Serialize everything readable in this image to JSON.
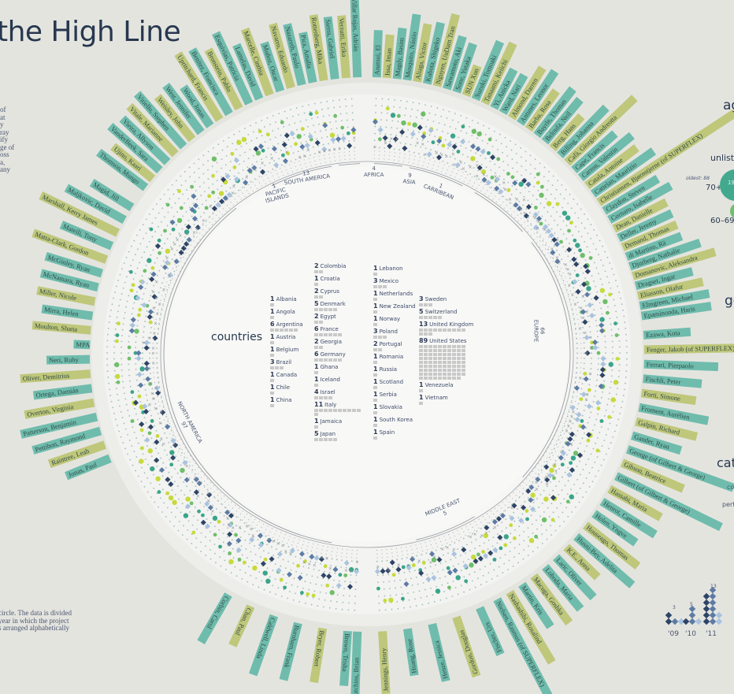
{
  "title": "the High Line",
  "intro_text_fragment": [
    "of",
    "at",
    "y",
    "ray",
    "ify",
    "ge of",
    "oss",
    "a,",
    "any"
  ],
  "footnote_text": [
    "circle. The data is divided",
    "year in which the project",
    "s arranged alphabetically"
  ],
  "center_label": "countries",
  "colors": {
    "background": "#e4e4df",
    "teal_label": "#6fbcad",
    "olive_label": "#bfc77a",
    "navy": "#27384f",
    "age_green": "#43a98e",
    "diamond_dark": "#2e4466",
    "diamond_mid": "#5c7ba5",
    "diamond_light": "#a9c3df",
    "dot_lime": "#c6da3c",
    "dot_green": "#6fbf6a",
    "dot_teal": "#3aa58a"
  },
  "regions": [
    {
      "name": "PACIFIC ISLANDS",
      "count": "1"
    },
    {
      "name": "SOUTH AMERICA",
      "count": "13"
    },
    {
      "name": "AFRICA",
      "count": "4"
    },
    {
      "name": "ASIA",
      "count": "9"
    },
    {
      "name": "CARRIBEAN",
      "count": "1"
    },
    {
      "name": "EUROPE",
      "count": "66"
    },
    {
      "name": "MIDDLE EAST",
      "count": "5"
    },
    {
      "name": "NORTH AMERICA",
      "count": "97"
    }
  ],
  "countries_col1": [
    {
      "n": "1",
      "name": "Albania"
    },
    {
      "n": "1",
      "name": "Angola"
    },
    {
      "n": "6",
      "name": "Argentina"
    },
    {
      "n": "1",
      "name": "Austria"
    },
    {
      "n": "1",
      "name": "Belgium"
    },
    {
      "n": "3",
      "name": "Brazil"
    },
    {
      "n": "1",
      "name": "Canada"
    },
    {
      "n": "1",
      "name": "Chile"
    },
    {
      "n": "1",
      "name": "China"
    }
  ],
  "countries_col2": [
    {
      "n": "2",
      "name": "Colombia"
    },
    {
      "n": "1",
      "name": "Croatia"
    },
    {
      "n": "2",
      "name": "Cyprus"
    },
    {
      "n": "5",
      "name": "Denmark"
    },
    {
      "n": "2",
      "name": "Egypt"
    },
    {
      "n": "6",
      "name": "France"
    },
    {
      "n": "2",
      "name": "Georgia"
    },
    {
      "n": "6",
      "name": "Germany"
    },
    {
      "n": "1",
      "name": "Ghana"
    },
    {
      "n": "1",
      "name": "Iceland"
    },
    {
      "n": "4",
      "name": "Israel"
    },
    {
      "n": "11",
      "name": "Italy"
    },
    {
      "n": "1",
      "name": "Jamaica"
    },
    {
      "n": "5",
      "name": "Japan"
    }
  ],
  "countries_col3": [
    {
      "n": "1",
      "name": "Lebanon"
    },
    {
      "n": "3",
      "name": "Mexico"
    },
    {
      "n": "1",
      "name": "Netherlands"
    },
    {
      "n": "1",
      "name": "New Zealand"
    },
    {
      "n": "1",
      "name": "Norway"
    },
    {
      "n": "3",
      "name": "Poland"
    },
    {
      "n": "2",
      "name": "Portugal"
    },
    {
      "n": "1",
      "name": "Romania"
    },
    {
      "n": "1",
      "name": "Russia"
    },
    {
      "n": "1",
      "name": "Scotland"
    },
    {
      "n": "1",
      "name": "Serbia"
    },
    {
      "n": "1",
      "name": "Slovakia"
    },
    {
      "n": "1",
      "name": "South Korea"
    },
    {
      "n": "1",
      "name": "Spain"
    }
  ],
  "countries_col4": [
    {
      "n": "3",
      "name": "Sweden"
    },
    {
      "n": "5",
      "name": "Switzerland"
    },
    {
      "n": "13",
      "name": "United Kingdom"
    },
    {
      "n": "89",
      "name": "United States"
    },
    {
      "n": "1",
      "name": "Venezuela"
    },
    {
      "n": "1",
      "name": "Vietnam"
    }
  ],
  "right_panel": {
    "age_heading": "ag",
    "unlisted_label": "unliste",
    "oldest_label": "oldest: 88",
    "age_70_label": "70+",
    "age_70_value": "19",
    "age_60_label": "60–69",
    "gender_heading": "ge",
    "category_heading": "cat",
    "category_sub1": "co",
    "category_sub2": "perf"
  },
  "year_chart": {
    "years": [
      "'09",
      "'10",
      "'11"
    ],
    "totals": [
      "3",
      "5",
      "13"
    ]
  },
  "artist_names_top_left": [
    "Thomson, Mungo",
    "Ujino, Kaari",
    "VanderBeek, Sara",
    "Vieira, Allyson",
    "Vitale, Marianne",
    "Vitiello, Stephen",
    "Weisley, John",
    "West, Jennifer",
    "Wood, Jonas",
    "Upritchard, Francis",
    "Benitez, Francisca",
    "Bronstein, Pablo",
    "Esquivias, Patricia",
    "Lamelas, David",
    "Marcelle, Cinthia",
    "Muñoz, Oscar",
    "Navarro, Eduardo",
    "Nazareth, Paulo",
    "Pica, Amalia",
    "Rottenberg, Mika",
    "Sierra, Gabriel",
    "Verzutti, Erika",
    "Villar Rojas, Adrián"
  ],
  "artist_names_top_right": [
    "Anatsui, El",
    "Issa, Iman",
    "Magdy, Basim",
    "Mosquito, Nástio",
    "Aliaga, Victor",
    "Kubota, Shigeko",
    "Nguyen, UuDam Tran",
    "Sawamoto, Aki",
    "Sone, Yutaka",
    "SUN Xun",
    "Suzuki, Tomoaki",
    "Tanaami, Keiichi",
    "Yi, Anicka",
    "Ward, Nari",
    "Almond, Darren",
    "Antunes, Leonor",
    "Barba, Rosa",
    "Bayrle, Thomas",
    "Beloufa, Neil",
    "Berg, Hans",
    "Billing, Johanna",
    "Cafà, Giorgio Andreotta",
    "Cape, Francis",
    "Carron, Valentin",
    "Catala, Antoine",
    "Cattelan, Maurizio",
    "Christiansen, Bjørnstjerne (of SUPERFLEX)",
    "Claydon, Steven",
    "Cornaro, Isabelle",
    "Dean, Danielle",
    "Deller, Jeremy",
    "Demand, Thomas",
    "di Martino, Rä",
    "Djurberg, Nathalie",
    "Domanovic, Aleksandra",
    "Dragset, Ingar",
    "Eliasson, Olafur",
    "Elmgreen, Michael",
    "Epaminonda, Haris"
  ],
  "artist_names_right": [
    "Ezawa, Kota",
    "Fenger, Jakob (of SUPERFLEX)",
    "Ferrari, Pierpaolo",
    "Fischli, Peter",
    "Forti, Simone",
    "Froment, Aurélien",
    "Galpin, Richard",
    "Gander, Ryan",
    "George (of Gilbert & George)",
    "Gibson, Beatrice",
    "Gilbert (of Gilbert & George)",
    "Hassabi, Maria",
    "Henrot, Camille",
    "Holen, Yngve",
    "Houseago, Thomas",
    "Husni-Bey, Adelita",
    "K.E., Anna",
    "Laric, Oliver",
    "Loboda, Maria",
    "Macuga, Goshka",
    "Martin, Kris",
    "Nashashibi, Rosalind",
    "Nielsen, Rasmus (of SUPERFLEX)"
  ],
  "artist_names_left": [
    "Jonas, Paul",
    "Raintree, Leah",
    "Pettibon, Raymond",
    "Patterson, Benjamin",
    "Overton, Virginia",
    "Ortega, Damián",
    "Oliver, Demitrius",
    "Neri, Ruby",
    "MPA",
    "Moulton, Shana",
    "Mirra, Helen",
    "Miller, Nicole",
    "McNamara, Ryan",
    "McGinley, Ryan",
    "Matta-Clark, Gordon",
    "Mateili, Tony",
    "Marshall, Kerry James",
    "Maljkovic, David",
    "Magid, Jill"
  ],
  "chart_data": {
    "type": "radial",
    "title": "the High Line",
    "center_label": "countries",
    "regions": {
      "labels": [
        "Pacific Islands",
        "South America",
        "Africa",
        "Asia",
        "Carribean",
        "Europe",
        "Middle East",
        "North America"
      ],
      "values": [
        1,
        13,
        4,
        9,
        1,
        66,
        5,
        97
      ]
    },
    "countries": {
      "labels": [
        "Albania",
        "Angola",
        "Argentina",
        "Austria",
        "Belgium",
        "Brazil",
        "Canada",
        "Chile",
        "China",
        "Colombia",
        "Croatia",
        "Cyprus",
        "Denmark",
        "Egypt",
        "France",
        "Georgia",
        "Germany",
        "Ghana",
        "Iceland",
        "Israel",
        "Italy",
        "Jamaica",
        "Japan",
        "Lebanon",
        "Mexico",
        "Netherlands",
        "New Zealand",
        "Norway",
        "Poland",
        "Portugal",
        "Romania",
        "Russia",
        "Scotland",
        "Serbia",
        "Slovakia",
        "South Korea",
        "Spain",
        "Sweden",
        "Switzerland",
        "United Kingdom",
        "United States",
        "Venezuela",
        "Vietnam"
      ],
      "values": [
        1,
        1,
        6,
        1,
        1,
        3,
        1,
        1,
        1,
        2,
        1,
        2,
        5,
        2,
        6,
        2,
        6,
        1,
        1,
        4,
        11,
        1,
        5,
        1,
        3,
        1,
        1,
        1,
        3,
        2,
        1,
        1,
        1,
        1,
        1,
        1,
        1,
        3,
        5,
        13,
        89,
        1,
        1
      ]
    },
    "projects_by_year": {
      "categories": [
        "'09",
        "'10",
        "'11"
      ],
      "values": [
        3,
        5,
        13
      ]
    }
  }
}
